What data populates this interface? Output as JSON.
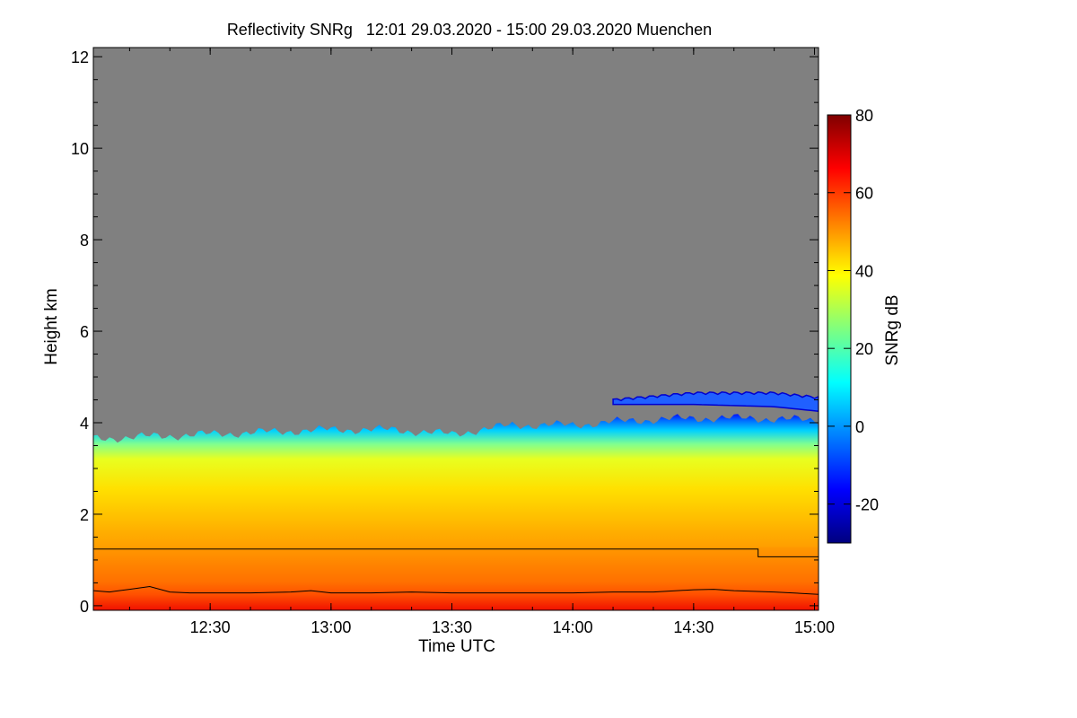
{
  "chart_data": {
    "type": "heatmap",
    "title": "Reflectivity SNRg   12:01 29.03.2020 - 15:00 29.03.2020 Muenchen",
    "xlabel": "Time UTC",
    "ylabel": "Height km",
    "x_range": [
      "12:01",
      "15:01"
    ],
    "x_ticks": [
      "12:30",
      "13:00",
      "13:30",
      "14:00",
      "14:30",
      "15:00"
    ],
    "ylim": [
      -0.1,
      12.2
    ],
    "y_ticks": [
      "0",
      "2",
      "4",
      "6",
      "8",
      "10",
      "12"
    ],
    "background_color": "#808080",
    "colorbar": {
      "label": "SNRg dB",
      "range": [
        -30,
        80
      ],
      "ticks": [
        "-20",
        "0",
        "20",
        "40",
        "60",
        "80"
      ],
      "colormap": [
        "#00007f",
        "#0000ff",
        "#007fff",
        "#00ffff",
        "#7fff7f",
        "#ffff00",
        "#ff7f00",
        "#ff0000",
        "#7f0000"
      ]
    },
    "lines": [
      {
        "x": [
          "12:01",
          "14:46",
          "14:46",
          "15:01"
        ],
        "y": [
          1.24,
          1.24,
          1.07,
          1.07
        ]
      },
      {
        "x": [
          "12:01",
          "12:05",
          "12:10",
          "12:15",
          "12:20",
          "12:25",
          "12:30",
          "12:40",
          "12:50",
          "12:55",
          "13:00",
          "13:10",
          "13:20",
          "13:30",
          "13:40",
          "13:50",
          "14:00",
          "14:10",
          "14:20",
          "14:30",
          "14:35",
          "14:40",
          "14:50",
          "15:01"
        ],
        "y": [
          0.33,
          0.3,
          0.36,
          0.42,
          0.3,
          0.28,
          0.28,
          0.28,
          0.3,
          0.33,
          0.28,
          0.28,
          0.3,
          0.28,
          0.28,
          0.28,
          0.28,
          0.3,
          0.3,
          0.35,
          0.36,
          0.33,
          0.3,
          0.25
        ]
      }
    ],
    "cloud_top_km": {
      "x": [
        "12:01",
        "12:30",
        "13:00",
        "13:15",
        "13:30",
        "13:45",
        "14:00",
        "14:15",
        "14:30",
        "14:45",
        "15:01"
      ],
      "y": [
        3.65,
        3.75,
        3.85,
        3.85,
        3.75,
        3.95,
        3.95,
        4.05,
        4.1,
        4.1,
        4.05
      ]
    },
    "upper_layer_km": {
      "x": [
        "14:10",
        "14:30",
        "14:50",
        "15:01"
      ],
      "top": [
        4.5,
        4.65,
        4.65,
        4.55
      ],
      "base": [
        4.4,
        4.4,
        4.35,
        4.25
      ]
    }
  }
}
